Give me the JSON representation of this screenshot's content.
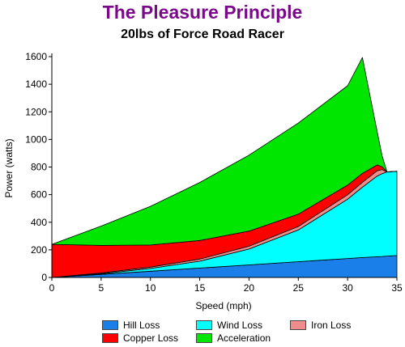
{
  "title": "The Pleasure Principle",
  "subtitle": "20lbs of Force Road Racer",
  "chart_data": {
    "type": "area",
    "stacked": true,
    "title": "The Pleasure Principle",
    "subtitle": "20lbs of Force Road Racer",
    "xlabel": "Speed (mph)",
    "ylabel": "Power (watts)",
    "xlim": [
      0,
      35
    ],
    "ylim": [
      0,
      1600
    ],
    "xticks": [
      0,
      5,
      10,
      15,
      20,
      25,
      30,
      35
    ],
    "yticks": [
      0,
      200,
      400,
      600,
      800,
      1000,
      1200,
      1400,
      1600
    ],
    "grid": false,
    "legend_position": "bottom",
    "x": [
      0,
      5,
      10,
      15,
      20,
      25,
      30,
      31.5,
      33,
      33.5,
      34,
      35
    ],
    "series": [
      {
        "name": "Hill Loss",
        "color": "#1a7fe8",
        "values": [
          0,
          22,
          45,
          68,
          91,
          114,
          137,
          144,
          150,
          152,
          155,
          159
        ]
      },
      {
        "name": "Wind Loss",
        "color": "#00ffff",
        "values": [
          0,
          5,
          20,
          50,
          115,
          230,
          430,
          510,
          585,
          600,
          610,
          610
        ]
      },
      {
        "name": "Iron Loss",
        "color": "#f08c8c",
        "values": [
          0,
          5,
          10,
          15,
          20,
          25,
          32,
          35,
          38,
          30,
          0,
          0
        ]
      },
      {
        "name": "Copper Loss",
        "color": "#ff0000",
        "values": [
          240,
          200,
          160,
          135,
          110,
          90,
          70,
          65,
          42,
          20,
          0,
          0
        ]
      },
      {
        "name": "Acceleration",
        "color": "#00e600",
        "values": [
          0,
          140,
          280,
          420,
          550,
          660,
          720,
          840,
          240,
          80,
          0,
          0
        ]
      }
    ]
  }
}
